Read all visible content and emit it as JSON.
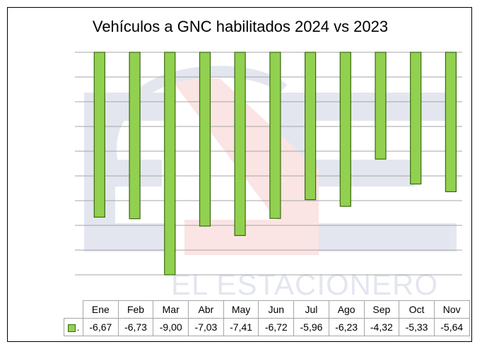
{
  "chart_data": {
    "type": "bar",
    "title": "Vehículos a GNC habilitados 2024 vs 2023",
    "categories": [
      "Ene",
      "Feb",
      "Mar",
      "Abr",
      "May",
      "Jun",
      "Jul",
      "Ago",
      "Sep",
      "Oct",
      "Nov"
    ],
    "series": [
      {
        "name": ".",
        "color": "#92d050",
        "values": [
          -6.67,
          -6.73,
          -9.0,
          -7.03,
          -7.41,
          -6.72,
          -5.96,
          -6.23,
          -4.32,
          -5.33,
          -5.64
        ],
        "labels": [
          "-6,67",
          "-6,73",
          "-9,00",
          "-7,03",
          "-7,41",
          "-6,72",
          "-5,96",
          "-6,23",
          "-4,32",
          "-5,33",
          "-5,64"
        ]
      }
    ],
    "ylim": [
      -9,
      0
    ],
    "grid": true,
    "legend": "data-table"
  },
  "watermark": {
    "text": "EL ESTACIONERO"
  }
}
